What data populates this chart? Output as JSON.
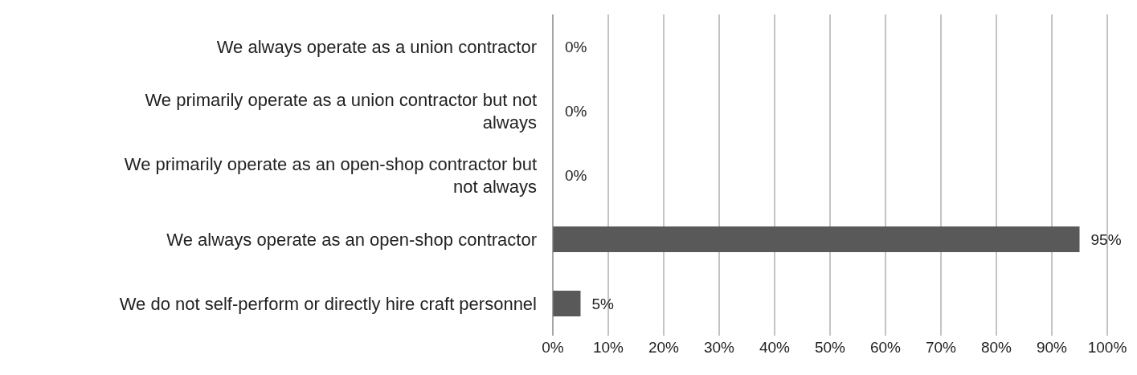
{
  "chart_data": {
    "type": "bar",
    "orientation": "horizontal",
    "categories": [
      "We always operate as a union contractor",
      "We primarily operate as a union contractor but not always",
      "We primarily operate as an open-shop contractor but not always",
      "We always operate as an open-shop contractor",
      "We do not self-perform or directly hire craft personnel"
    ],
    "values": [
      0,
      0,
      0,
      95,
      5
    ],
    "value_labels": [
      "0%",
      "0%",
      "0%",
      "95%",
      "5%"
    ],
    "color": "#595959",
    "xlim": [
      0,
      100
    ],
    "xticks": [
      {
        "value": 0,
        "label": "0%"
      },
      {
        "value": 10,
        "label": "10%"
      },
      {
        "value": 20,
        "label": "20%"
      },
      {
        "value": 30,
        "label": "30%"
      },
      {
        "value": 40,
        "label": "40%"
      },
      {
        "value": 50,
        "label": "50%"
      },
      {
        "value": 60,
        "label": "60%"
      },
      {
        "value": 70,
        "label": "70%"
      },
      {
        "value": 80,
        "label": "80%"
      },
      {
        "value": 90,
        "label": "90%"
      },
      {
        "value": 100,
        "label": "100%"
      }
    ],
    "grid": "x",
    "legend": false
  }
}
